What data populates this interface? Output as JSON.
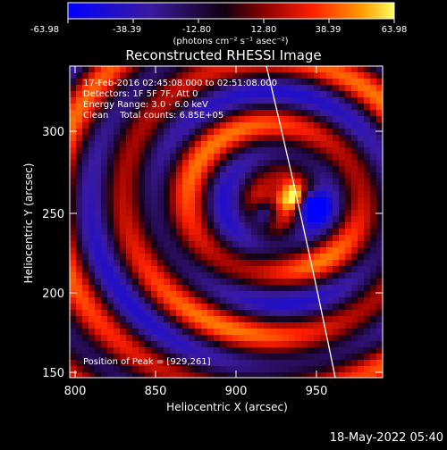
{
  "colorbar": {
    "tick_labels": [
      "-63.98",
      "-38.39",
      "-12.80",
      "12.80",
      "38.39",
      "63.98"
    ],
    "unit_label": "(photons cm⁻² s⁻¹ asec⁻²)",
    "range": [
      -63.98,
      63.98
    ]
  },
  "image": {
    "title": "Reconstructed RHESSI Image",
    "info_lines": [
      "17-Feb-2016 02:45:08.000 to 02:51:08.000",
      "Detectors: 1F 5F 7F, Att 0",
      "Energy Range: 3.0 - 6.0 keV",
      "Clean    Total counts: 6.85E+05"
    ],
    "peak_label": "Position of Peak = [929,261]",
    "peak": {
      "x": 929,
      "y": 261
    }
  },
  "axes": {
    "xlabel": "Heliocentric X (arcsec)",
    "ylabel": "Heliocentric Y (arcsec)",
    "xlim": [
      791,
      989
    ],
    "ylim": [
      147,
      345
    ],
    "x_ticks": [
      "800",
      "850",
      "900",
      "950"
    ],
    "y_ticks": [
      "150",
      "200",
      "250",
      "300"
    ]
  },
  "footer": {
    "timestamp": "18-May-2022 05:40"
  },
  "colors": {
    "negative_end": "#0000ff",
    "positive_end": "#ffff00",
    "limb_line": "#ffffff"
  }
}
